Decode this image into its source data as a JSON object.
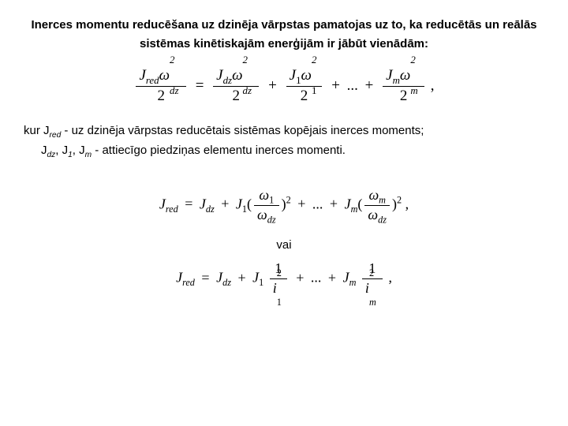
{
  "heading": "Inerces momentu reducēšana uz dzinēja vārpstas pamatojas uz to, ka reducētās un reālās sistēmas kinētiskajām enerģijām ir jābūt vienādām:",
  "expl_line1_pre": "kur J",
  "expl_line1_sub": "red",
  "expl_line1_post": " - uz dzinēja vārpstas reducētais sistēmas kopējais inerces moments;",
  "expl_line2_j": "J",
  "expl_line2_s1": "dz",
  "expl_line2_s2": "1",
  "expl_line2_s3": "m",
  "expl_line2_post": " - attiecīgo piedziņas elementu inerces momenti.",
  "vai": "vai",
  "eq1": {
    "J": "J",
    "omega": "ω",
    "red": "red",
    "dz": "dz",
    "one": "1",
    "m": "m",
    "two": "2",
    "denom2": "2",
    "eq": "=",
    "plus": "+",
    "dots": "...",
    "comma": ","
  },
  "eq2": {
    "J": "J",
    "omega": "ω",
    "red": "red",
    "dz": "dz",
    "one": "1",
    "m": "m",
    "eq": "=",
    "plus": "+",
    "dots": "...",
    "comma": ",",
    "lp": "(",
    "rp": ")",
    "sq": "2"
  },
  "eq3": {
    "J": "J",
    "i": "i",
    "red": "red",
    "dz": "dz",
    "one": "1",
    "m": "m",
    "eq": "=",
    "plus": "+",
    "dots": "...",
    "comma": ",",
    "num1": "1",
    "sq": "2"
  }
}
